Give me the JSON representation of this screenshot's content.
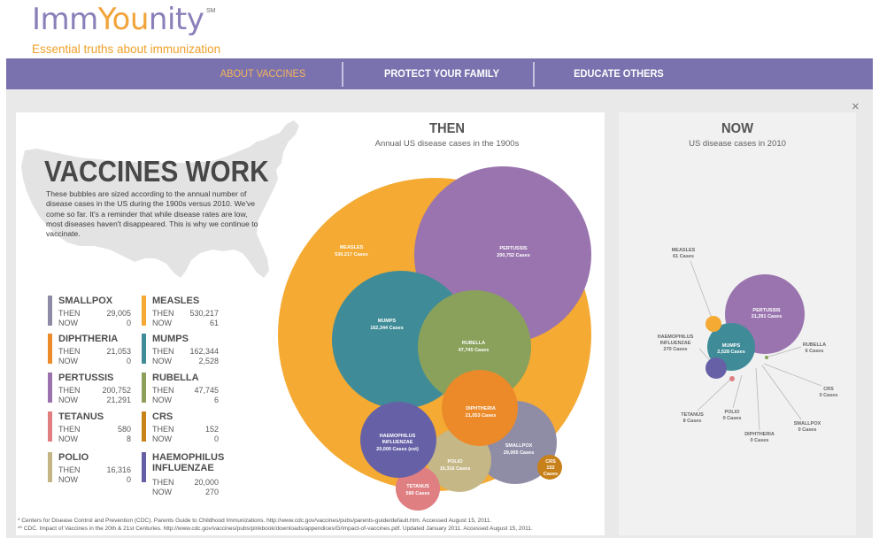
{
  "brand": {
    "logo_imm": "Imm",
    "logo_you": "You",
    "logo_nity": "nity",
    "service_mark": "SM",
    "tagline": "Essential truths about immunization"
  },
  "nav": {
    "items": [
      {
        "label": "ABOUT VACCINES",
        "active": true
      },
      {
        "label": "PROTECT YOUR FAMILY",
        "active": false
      },
      {
        "label": "EDUCATE OTHERS",
        "active": false
      }
    ]
  },
  "close": {
    "glyph": "×"
  },
  "intro": {
    "title": "VACCINES WORK",
    "text": "These bubbles are sized according to the annual number of disease cases in the US during the 1900s versus 2010. We've come so far. It's a reminder that while disease rates are low, most diseases haven't disappeared. This is why we continue to vaccinate."
  },
  "legend": {
    "then_label": "THEN",
    "now_label": "NOW",
    "diseases": [
      {
        "name": "SMALLPOX",
        "then": "29,005",
        "now": "0",
        "color": "#8c8aa4"
      },
      {
        "name": "MEASLES",
        "then": "530,217",
        "now": "61",
        "color": "#f5a833"
      },
      {
        "name": "DIPHTHERIA",
        "then": "21,053",
        "now": "0",
        "color": "#ec8a2c"
      },
      {
        "name": "MUMPS",
        "then": "162,344",
        "now": "2,528",
        "color": "#3f8b98"
      },
      {
        "name": "PERTUSSIS",
        "then": "200,752",
        "now": "21,291",
        "color": "#9b72ad"
      },
      {
        "name": "RUBELLA",
        "then": "47,745",
        "now": "6",
        "color": "#8ca05a"
      },
      {
        "name": "TETANUS",
        "then": "580",
        "now": "8",
        "color": "#e07e80"
      },
      {
        "name": "CRS",
        "then": "152",
        "now": "0",
        "color": "#c7831a"
      },
      {
        "name": "POLIO",
        "then": "16,316",
        "now": "0",
        "color": "#c4b585"
      },
      {
        "name": "HAEMOPHILUS INFLUENZAE",
        "name_line1": "HAEMOPHILUS",
        "name_line2": "INFLUENZAE",
        "then": "20,000",
        "now": "270",
        "color": "#6560a4"
      }
    ]
  },
  "then_panel": {
    "heading": "THEN",
    "subheading": "Annual US disease cases in the 1900s",
    "bubbles": [
      {
        "key": "measles",
        "label": "MEASLES",
        "cases": "530,217 Cases"
      },
      {
        "key": "pertussis",
        "label": "PERTUSSIS",
        "cases": "200,752 Cases"
      },
      {
        "key": "mumps",
        "label": "MUMPS",
        "cases": "162,344 Cases"
      },
      {
        "key": "rubella",
        "label": "RUBELLA",
        "cases": "47,745 Cases"
      },
      {
        "key": "diphtheria",
        "label": "DIPHTHERIA",
        "cases": "21,053 Cases"
      },
      {
        "key": "haemophilus",
        "label": "HAEMOPHILUS",
        "label2": "INFLUENZAE",
        "cases": "20,000 Cases (est)"
      },
      {
        "key": "smallpox",
        "label": "SMALLPOX",
        "cases": "29,005 Cases"
      },
      {
        "key": "polio",
        "label": "POLIO",
        "cases": "16,316 Cases"
      },
      {
        "key": "tetanus",
        "label": "TETANUS",
        "cases": "580 Cases"
      },
      {
        "key": "crs",
        "label": "CRS",
        "cases": "152",
        "cases2": "Cases"
      }
    ]
  },
  "now_panel": {
    "heading": "NOW",
    "subheading": "US disease cases in 2010",
    "bubbles": [
      {
        "key": "measles",
        "label": "MEASLES",
        "cases": "61 Cases"
      },
      {
        "key": "pertussis",
        "label": "PERTUSSIS",
        "cases": "21,291 Cases"
      },
      {
        "key": "haemophilus",
        "label": "HAEMOPHILUS",
        "label2": "INFLUENZAE",
        "cases": "270 Cases"
      },
      {
        "key": "mumps",
        "label": "MUMPS",
        "cases": "2,528 Cases"
      },
      {
        "key": "rubella",
        "label": "RUBELLA",
        "cases": "6 Cases"
      },
      {
        "key": "crs",
        "label": "CRS",
        "cases": "0 Cases"
      },
      {
        "key": "tetanus",
        "label": "TETANUS",
        "cases": "8 Cases"
      },
      {
        "key": "polio",
        "label": "POLIO",
        "cases": "0 Cases"
      },
      {
        "key": "diphtheria",
        "label": "DIPHTHERIA",
        "cases": "0 Cases"
      },
      {
        "key": "smallpox",
        "label": "SMALLPOX",
        "cases": "0 Cases"
      }
    ]
  },
  "footnotes": [
    "* Centers for Disease Control and Prevention (CDC). Parents Guide to Childhood Immunizations. http://www.cdc.gov/vaccines/pubs/parents-guide/default.htm. Accessed August 15, 2011.",
    "** CDC. Impact of Vaccines in the 20th & 21st Centuries. http://www.cdc.gov/vaccines/pubs/pinkbook/downloads/appendices/G/impact-of-vaccines.pdf. Updated January 2011. Accessed August 15, 2011."
  ]
}
